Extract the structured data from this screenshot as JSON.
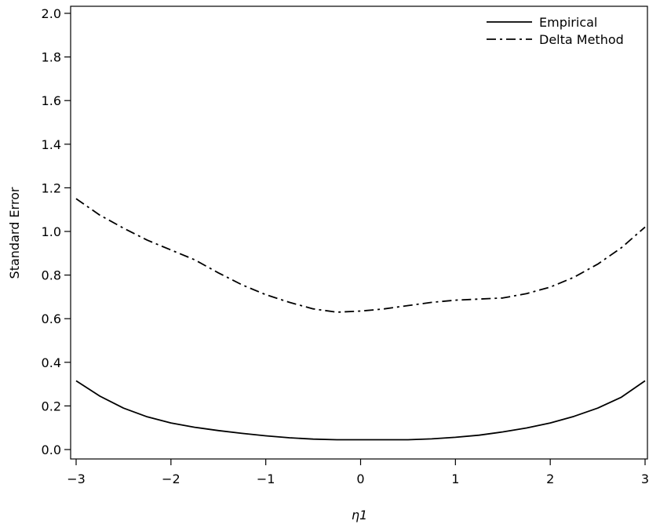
{
  "chart_data": {
    "type": "line",
    "title": "",
    "xlabel": "η1",
    "ylabel": "Standard Error",
    "xlim": [
      -3,
      3
    ],
    "ylim": [
      0.0,
      2.0
    ],
    "x_ticks": [
      -3,
      -2,
      -1,
      0,
      1,
      2,
      3
    ],
    "x_tick_labels": [
      "−3",
      "−2",
      "−1",
      "0",
      "1",
      "2",
      "3"
    ],
    "y_ticks": [
      0.0,
      0.2,
      0.4,
      0.6,
      0.8,
      1.0,
      1.2,
      1.4,
      1.6,
      1.8,
      2.0
    ],
    "y_tick_labels": [
      "0.0",
      "0.2",
      "0.4",
      "0.6",
      "0.8",
      "1.0",
      "1.2",
      "1.4",
      "1.6",
      "1.8",
      "2.0"
    ],
    "grid": false,
    "legend_position": "top-right",
    "series": [
      {
        "name": "Empirical",
        "line_style": "solid",
        "color": "#000000",
        "x": [
          -3.0,
          -2.75,
          -2.5,
          -2.25,
          -2.0,
          -1.75,
          -1.5,
          -1.25,
          -1.0,
          -0.75,
          -0.5,
          -0.25,
          0.0,
          0.25,
          0.5,
          0.75,
          1.0,
          1.25,
          1.5,
          1.75,
          2.0,
          2.25,
          2.5,
          2.75,
          3.0
        ],
        "y": [
          0.315,
          0.245,
          0.19,
          0.15,
          0.122,
          0.102,
          0.087,
          0.074,
          0.063,
          0.054,
          0.048,
          0.045,
          0.045,
          0.045,
          0.045,
          0.049,
          0.056,
          0.066,
          0.081,
          0.099,
          0.122,
          0.152,
          0.19,
          0.24,
          0.315
        ]
      },
      {
        "name": "Delta Method",
        "line_style": "dashdot",
        "color": "#000000",
        "x": [
          -3.0,
          -2.75,
          -2.5,
          -2.25,
          -2.0,
          -1.75,
          -1.5,
          -1.25,
          -1.0,
          -0.75,
          -0.5,
          -0.25,
          0.0,
          0.25,
          0.5,
          0.75,
          1.0,
          1.25,
          1.5,
          1.75,
          2.0,
          2.25,
          2.5,
          2.75,
          3.0
        ],
        "y": [
          1.15,
          1.075,
          1.015,
          0.96,
          0.915,
          0.87,
          0.81,
          0.755,
          0.71,
          0.675,
          0.645,
          0.63,
          0.635,
          0.645,
          0.66,
          0.675,
          0.685,
          0.69,
          0.695,
          0.715,
          0.745,
          0.79,
          0.85,
          0.925,
          1.02
        ]
      }
    ]
  }
}
